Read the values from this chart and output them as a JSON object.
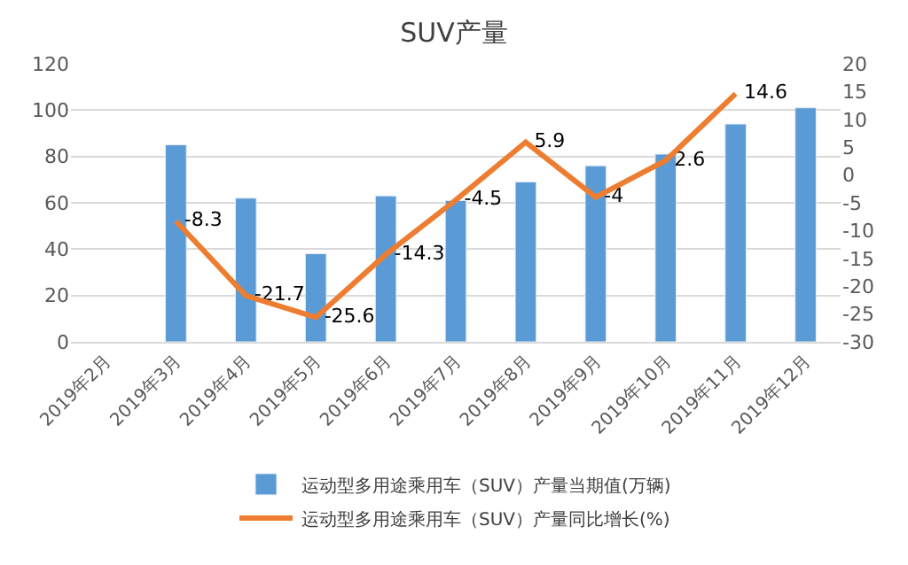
{
  "chart_data": {
    "type": "bar",
    "title": "SUV产量",
    "categories": [
      "2019年2月",
      "2019年3月",
      "2019年4月",
      "2019年5月",
      "2019年6月",
      "2019年7月",
      "2019年8月",
      "2019年9月",
      "2019年10月",
      "2019年11月",
      "2019年12月"
    ],
    "series": [
      {
        "name": "运动型多用途乘用车（SUV）产量当期值(万辆)",
        "color": "#5b9bd5",
        "values": [
          null,
          85,
          62,
          38,
          63,
          61,
          69,
          76,
          81,
          94,
          101
        ]
      },
      {
        "name": "运动型多用途乘用车（SUV）产量同比增长(%)",
        "type": "line",
        "axis": "y2",
        "color": "#ed7d31",
        "values": [
          null,
          -8.3,
          -21.7,
          -25.6,
          -14.3,
          -4.5,
          5.9,
          -4,
          2.6,
          14.6,
          null
        ],
        "value_labels": [
          null,
          "-8.3",
          "-21.7",
          "-25.6",
          "-14.3",
          "-4.5",
          "5.9",
          "-4",
          "2.6",
          "14.6",
          null
        ]
      }
    ],
    "ylim": [
      0,
      120
    ],
    "yticks": [
      0,
      20,
      40,
      60,
      80,
      100,
      120
    ],
    "y2lim": [
      -30,
      20
    ],
    "y2ticks": [
      -30,
      -25,
      -20,
      -15,
      -10,
      -5,
      0,
      5,
      10,
      15,
      20
    ],
    "grid": "y",
    "legend": "bottom",
    "marker": "none"
  }
}
